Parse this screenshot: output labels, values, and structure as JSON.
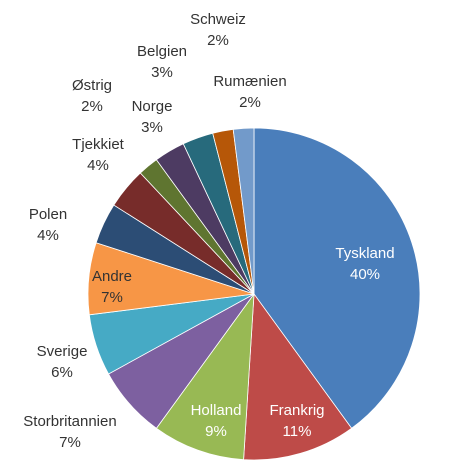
{
  "chart_data": {
    "type": "pie",
    "categories": [
      "Tyskland",
      "Frankrig",
      "Holland",
      "Storbritannien",
      "Sverige",
      "Andre",
      "Polen",
      "Tjekkiet",
      "Østrig",
      "Norge",
      "Belgien",
      "Schweiz",
      "Rumænien"
    ],
    "values": [
      40,
      11,
      9,
      7,
      6,
      7,
      4,
      4,
      2,
      3,
      3,
      2,
      2
    ],
    "value_labels": [
      "40%",
      "11%",
      "9%",
      "7%",
      "6%",
      "7%",
      "4%",
      "4%",
      "2%",
      "3%",
      "3%",
      "2%",
      "2%"
    ],
    "colors": [
      "#4a7ebb",
      "#be4b48",
      "#98b954",
      "#7d60a0",
      "#46aac5",
      "#f79646",
      "#2c4d75",
      "#772c2a",
      "#5f7530",
      "#4d3b62",
      "#276a7c",
      "#b65708",
      "#729aca"
    ]
  }
}
